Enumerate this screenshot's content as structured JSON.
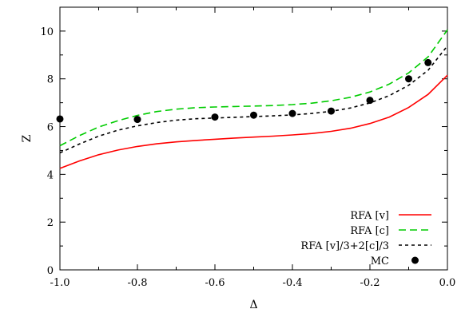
{
  "chart_data": {
    "type": "line",
    "xlabel": "Δ",
    "ylabel": "Z",
    "xlim": [
      -1.0,
      0.0
    ],
    "ylim": [
      0,
      11
    ],
    "x_ticks": [
      -1.0,
      -0.8,
      -0.6,
      -0.4,
      -0.2,
      0.0
    ],
    "x_tick_labels": [
      "-1.0",
      "-0.8",
      "-0.6",
      "-0.4",
      "-0.2",
      "0.0"
    ],
    "y_ticks": [
      0,
      2,
      4,
      6,
      8,
      10
    ],
    "y_tick_labels": [
      "0",
      "2",
      "4",
      "6",
      "8",
      "10"
    ],
    "grid": false,
    "legend_position": "bottom-right",
    "series": [
      {
        "name": "RFA [v]",
        "style": "solid",
        "color": "#ff0000",
        "x": [
          -1.0,
          -0.95,
          -0.9,
          -0.85,
          -0.8,
          -0.75,
          -0.7,
          -0.65,
          -0.6,
          -0.55,
          -0.5,
          -0.45,
          -0.4,
          -0.35,
          -0.3,
          -0.25,
          -0.2,
          -0.15,
          -0.1,
          -0.05,
          0.0
        ],
        "y": [
          4.25,
          4.56,
          4.82,
          5.02,
          5.17,
          5.28,
          5.36,
          5.42,
          5.47,
          5.52,
          5.56,
          5.6,
          5.65,
          5.71,
          5.8,
          5.93,
          6.13,
          6.4,
          6.8,
          7.35,
          8.15
        ]
      },
      {
        "name": "RFA [c]",
        "style": "dashed",
        "color": "#00cc00",
        "x": [
          -1.0,
          -0.95,
          -0.9,
          -0.85,
          -0.8,
          -0.75,
          -0.7,
          -0.65,
          -0.6,
          -0.55,
          -0.5,
          -0.45,
          -0.4,
          -0.35,
          -0.3,
          -0.25,
          -0.2,
          -0.15,
          -0.1,
          -0.05,
          0.0
        ],
        "y": [
          5.2,
          5.62,
          5.98,
          6.25,
          6.47,
          6.63,
          6.73,
          6.79,
          6.82,
          6.84,
          6.86,
          6.88,
          6.92,
          6.98,
          7.08,
          7.23,
          7.45,
          7.78,
          8.25,
          8.92,
          10.05
        ]
      },
      {
        "name": "RFA [v]/3+2[c]/3",
        "style": "dotted",
        "color": "#000000",
        "x": [
          -1.0,
          -0.95,
          -0.9,
          -0.85,
          -0.8,
          -0.75,
          -0.7,
          -0.65,
          -0.6,
          -0.55,
          -0.5,
          -0.45,
          -0.4,
          -0.35,
          -0.3,
          -0.25,
          -0.2,
          -0.15,
          -0.1,
          -0.05,
          0.0
        ],
        "y": [
          4.9,
          5.27,
          5.6,
          5.85,
          6.03,
          6.17,
          6.27,
          6.33,
          6.36,
          6.39,
          6.42,
          6.45,
          6.49,
          6.55,
          6.64,
          6.78,
          6.99,
          7.3,
          7.73,
          8.36,
          9.38
        ]
      },
      {
        "name": "MC",
        "style": "points",
        "color": "#000000",
        "x": [
          -1.0,
          -0.8,
          -0.6,
          -0.5,
          -0.4,
          -0.3,
          -0.2,
          -0.1,
          -0.05
        ],
        "y": [
          6.32,
          6.3,
          6.4,
          6.48,
          6.55,
          6.65,
          7.1,
          8.0,
          8.68
        ]
      }
    ]
  }
}
